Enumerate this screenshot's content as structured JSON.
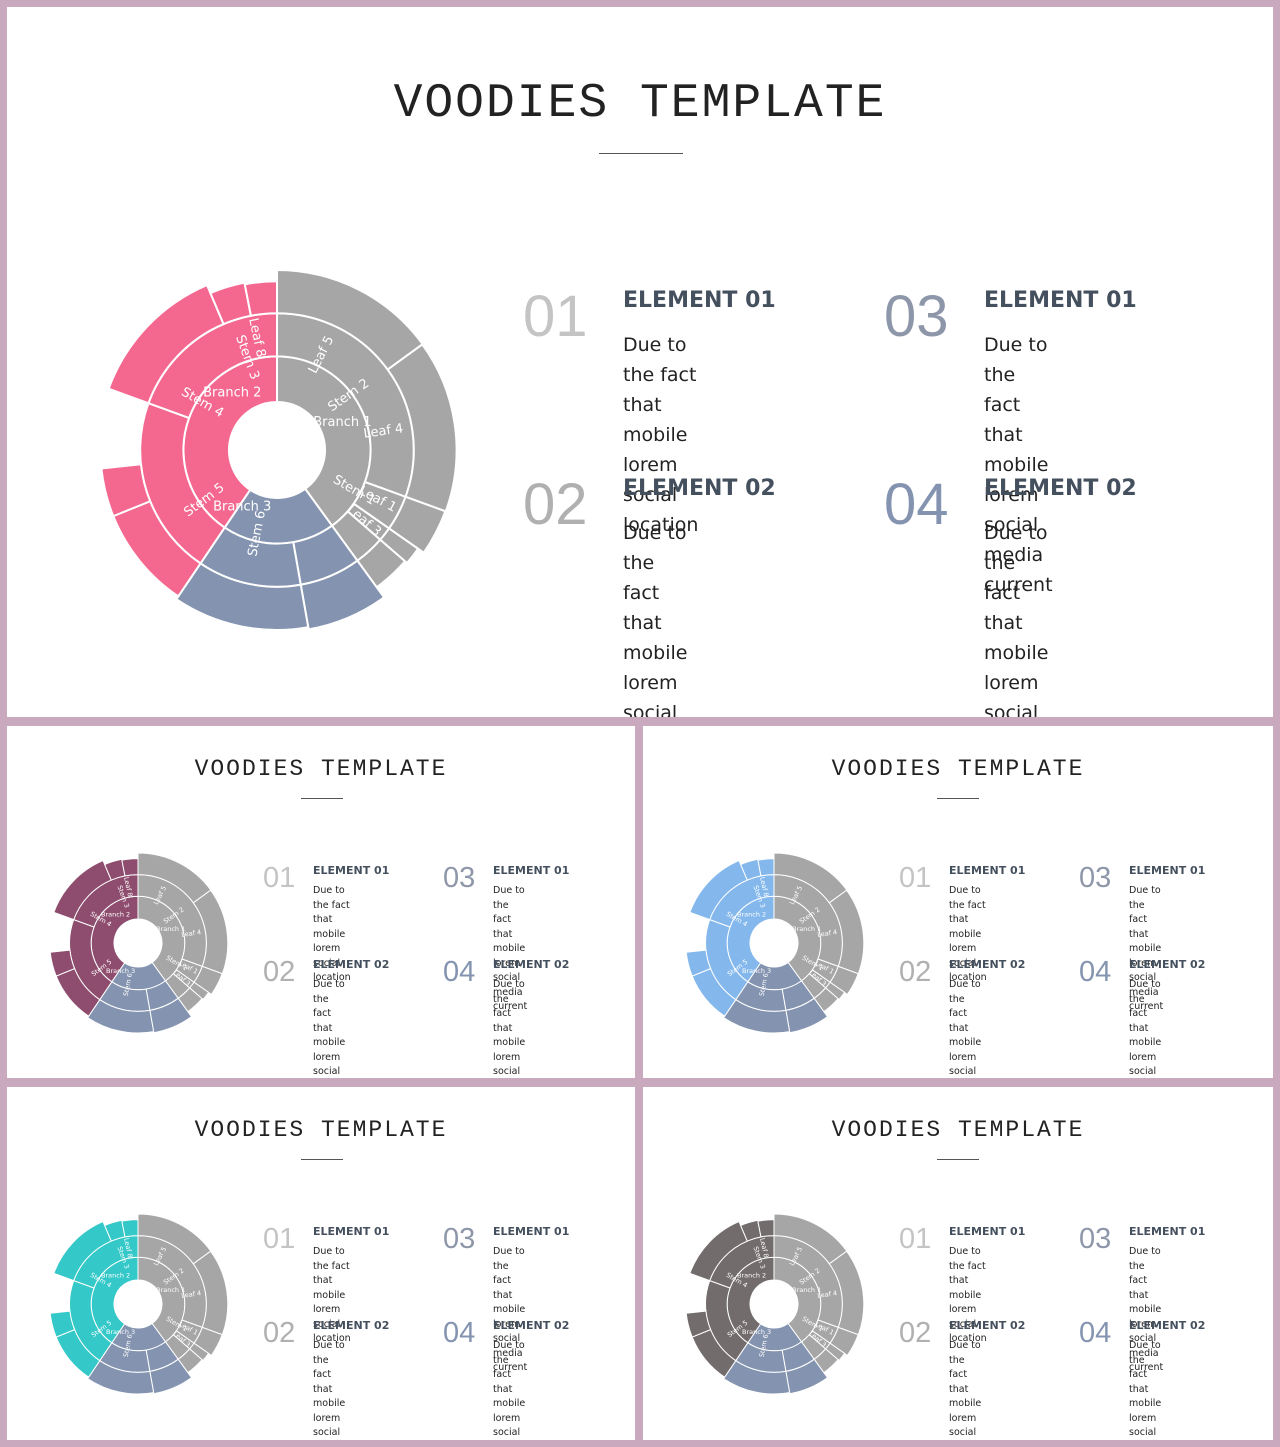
{
  "colors": {
    "border": "#c9a9bd",
    "branch1_gray": "#a6a6a6",
    "branch3_slate": "#8494b0",
    "accent_pink": "#f46890",
    "accent_plum": "#8e4d6e",
    "accent_sky": "#84b8ed",
    "accent_teal": "#34c8c8",
    "accent_charcoal": "#726c6c"
  },
  "sunburst": {
    "center_labels": [
      "Branch 1",
      "Branch 2",
      "Branch 3"
    ],
    "labels": [
      "Leaf 5",
      "Stem 2",
      "Leaf 4",
      "Stem 1",
      "Leaf 1",
      "Leaf 3",
      "Leaf 8",
      "Stem 3",
      "Stem 4",
      "Stem 5",
      "Stem 6"
    ]
  },
  "slides": [
    {
      "title": "VOODIES TEMPLATE",
      "accent": "#f46890",
      "items": [
        {
          "num": "01",
          "heading": "ELEMENT 01",
          "text": "Due to the fact that\nmobile lorem social\nlocation"
        },
        {
          "num": "02",
          "heading": "ELEMENT 02",
          "text": "Due to the fact that\nmobile lorem social\nmedia current"
        },
        {
          "num": "03",
          "heading": "ELEMENT 01",
          "text": "Due to the fact that\nmobile lorem social\nmedia current"
        },
        {
          "num": "04",
          "heading": "ELEMENT 02",
          "text": "Due to the fact that\nmobile lorem social\nmedia current"
        }
      ]
    },
    {
      "title": "VOODIES TEMPLATE",
      "accent": "#8e4d6e",
      "items": [
        {
          "num": "01",
          "heading": "ELEMENT 01",
          "text": "Due to the fact that\nmobile lorem social\nlocation"
        },
        {
          "num": "02",
          "heading": "ELEMENT 02",
          "text": "Due to the fact that\nmobile lorem social\nmedia current"
        },
        {
          "num": "03",
          "heading": "ELEMENT 01",
          "text": "Due to the fact that\nmobile lorem social\nmedia current"
        },
        {
          "num": "04",
          "heading": "ELEMENT 02",
          "text": "Due to the fact that\nmobile lorem social\nmedia current"
        }
      ]
    },
    {
      "title": "VOODIES TEMPLATE",
      "accent": "#84b8ed",
      "items": [
        {
          "num": "01",
          "heading": "ELEMENT 01",
          "text": "Due to the fact that\nmobile lorem social\nlocation"
        },
        {
          "num": "02",
          "heading": "ELEMENT 02",
          "text": "Due to the fact that\nmobile lorem social\nmedia current"
        },
        {
          "num": "03",
          "heading": "ELEMENT 01",
          "text": "Due to the fact that\nmobile lorem social\nmedia current"
        },
        {
          "num": "04",
          "heading": "ELEMENT 02",
          "text": "Due to the fact that\nmobile lorem social\nmedia current"
        }
      ]
    },
    {
      "title": "VOODIES TEMPLATE",
      "accent": "#34c8c8",
      "items": [
        {
          "num": "01",
          "heading": "ELEMENT 01",
          "text": "Due to the fact that\nmobile lorem social\nlocation"
        },
        {
          "num": "02",
          "heading": "ELEMENT 02",
          "text": "Due to the fact that\nmobile lorem social\nmedia current"
        },
        {
          "num": "03",
          "heading": "ELEMENT 01",
          "text": "Due to the fact that\nmobile lorem social\nmedia current"
        },
        {
          "num": "04",
          "heading": "ELEMENT 02",
          "text": "Due to the fact that\nmobile lorem social\nmedia current"
        }
      ]
    },
    {
      "title": "VOODIES TEMPLATE",
      "accent": "#726c6c",
      "items": [
        {
          "num": "01",
          "heading": "ELEMENT 01",
          "text": "Due to the fact that\nmobile lorem social\nlocation"
        },
        {
          "num": "02",
          "heading": "ELEMENT 02",
          "text": "Due to the fact that\nmobile lorem social\nmedia current"
        },
        {
          "num": "03",
          "heading": "ELEMENT 01",
          "text": "Due to the fact that\nmobile lorem social\nmedia current"
        },
        {
          "num": "04",
          "heading": "ELEMENT 02",
          "text": "Due to the fact that\nmobile lorem social\nmedia current"
        }
      ]
    }
  ]
}
